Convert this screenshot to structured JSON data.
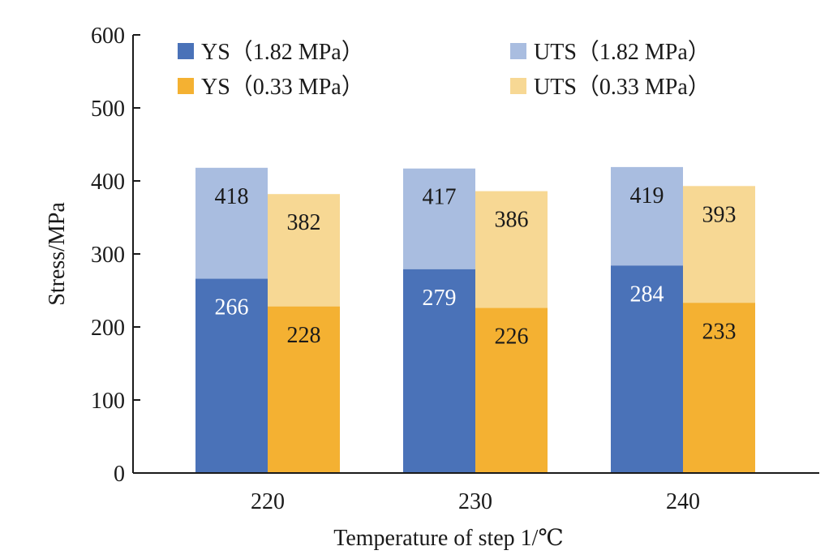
{
  "chart_data": {
    "type": "bar",
    "categories": [
      "220",
      "230",
      "240"
    ],
    "xlabel": "Temperature of step 1/℃",
    "ylabel": "Stress/MPa",
    "ylim": [
      0,
      600
    ],
    "yticks": [
      "0",
      "100",
      "200",
      "300",
      "400",
      "500",
      "600"
    ],
    "legend_position": "top",
    "groups": [
      {
        "name": "1.82 MPa",
        "front": {
          "name": "YS（1.82 MPa）",
          "values": [
            266,
            279,
            284
          ],
          "color": "#4a72b8",
          "label_color": "#ffffff"
        },
        "back": {
          "name": "UTS（1.82 MPa）",
          "values": [
            418,
            417,
            419
          ],
          "color": "#a9bde0",
          "label_color": "#1a1a1a"
        }
      },
      {
        "name": "0.33 MPa",
        "front": {
          "name": "YS（0.33 MPa）",
          "values": [
            228,
            226,
            233
          ],
          "color": "#f4b132",
          "label_color": "#1a1a1a"
        },
        "back": {
          "name": "UTS（0.33 MPa）",
          "values": [
            382,
            386,
            393
          ],
          "color": "#f7d894",
          "label_color": "#1a1a1a"
        }
      }
    ],
    "legend": [
      {
        "label": "YS（1.82 MPa）",
        "color": "#4a72b8"
      },
      {
        "label": "UTS（1.82 MPa）",
        "color": "#a9bde0"
      },
      {
        "label": "YS（0.33 MPa）",
        "color": "#f4b132"
      },
      {
        "label": "UTS（0.33 MPa）",
        "color": "#f7d894"
      }
    ]
  }
}
